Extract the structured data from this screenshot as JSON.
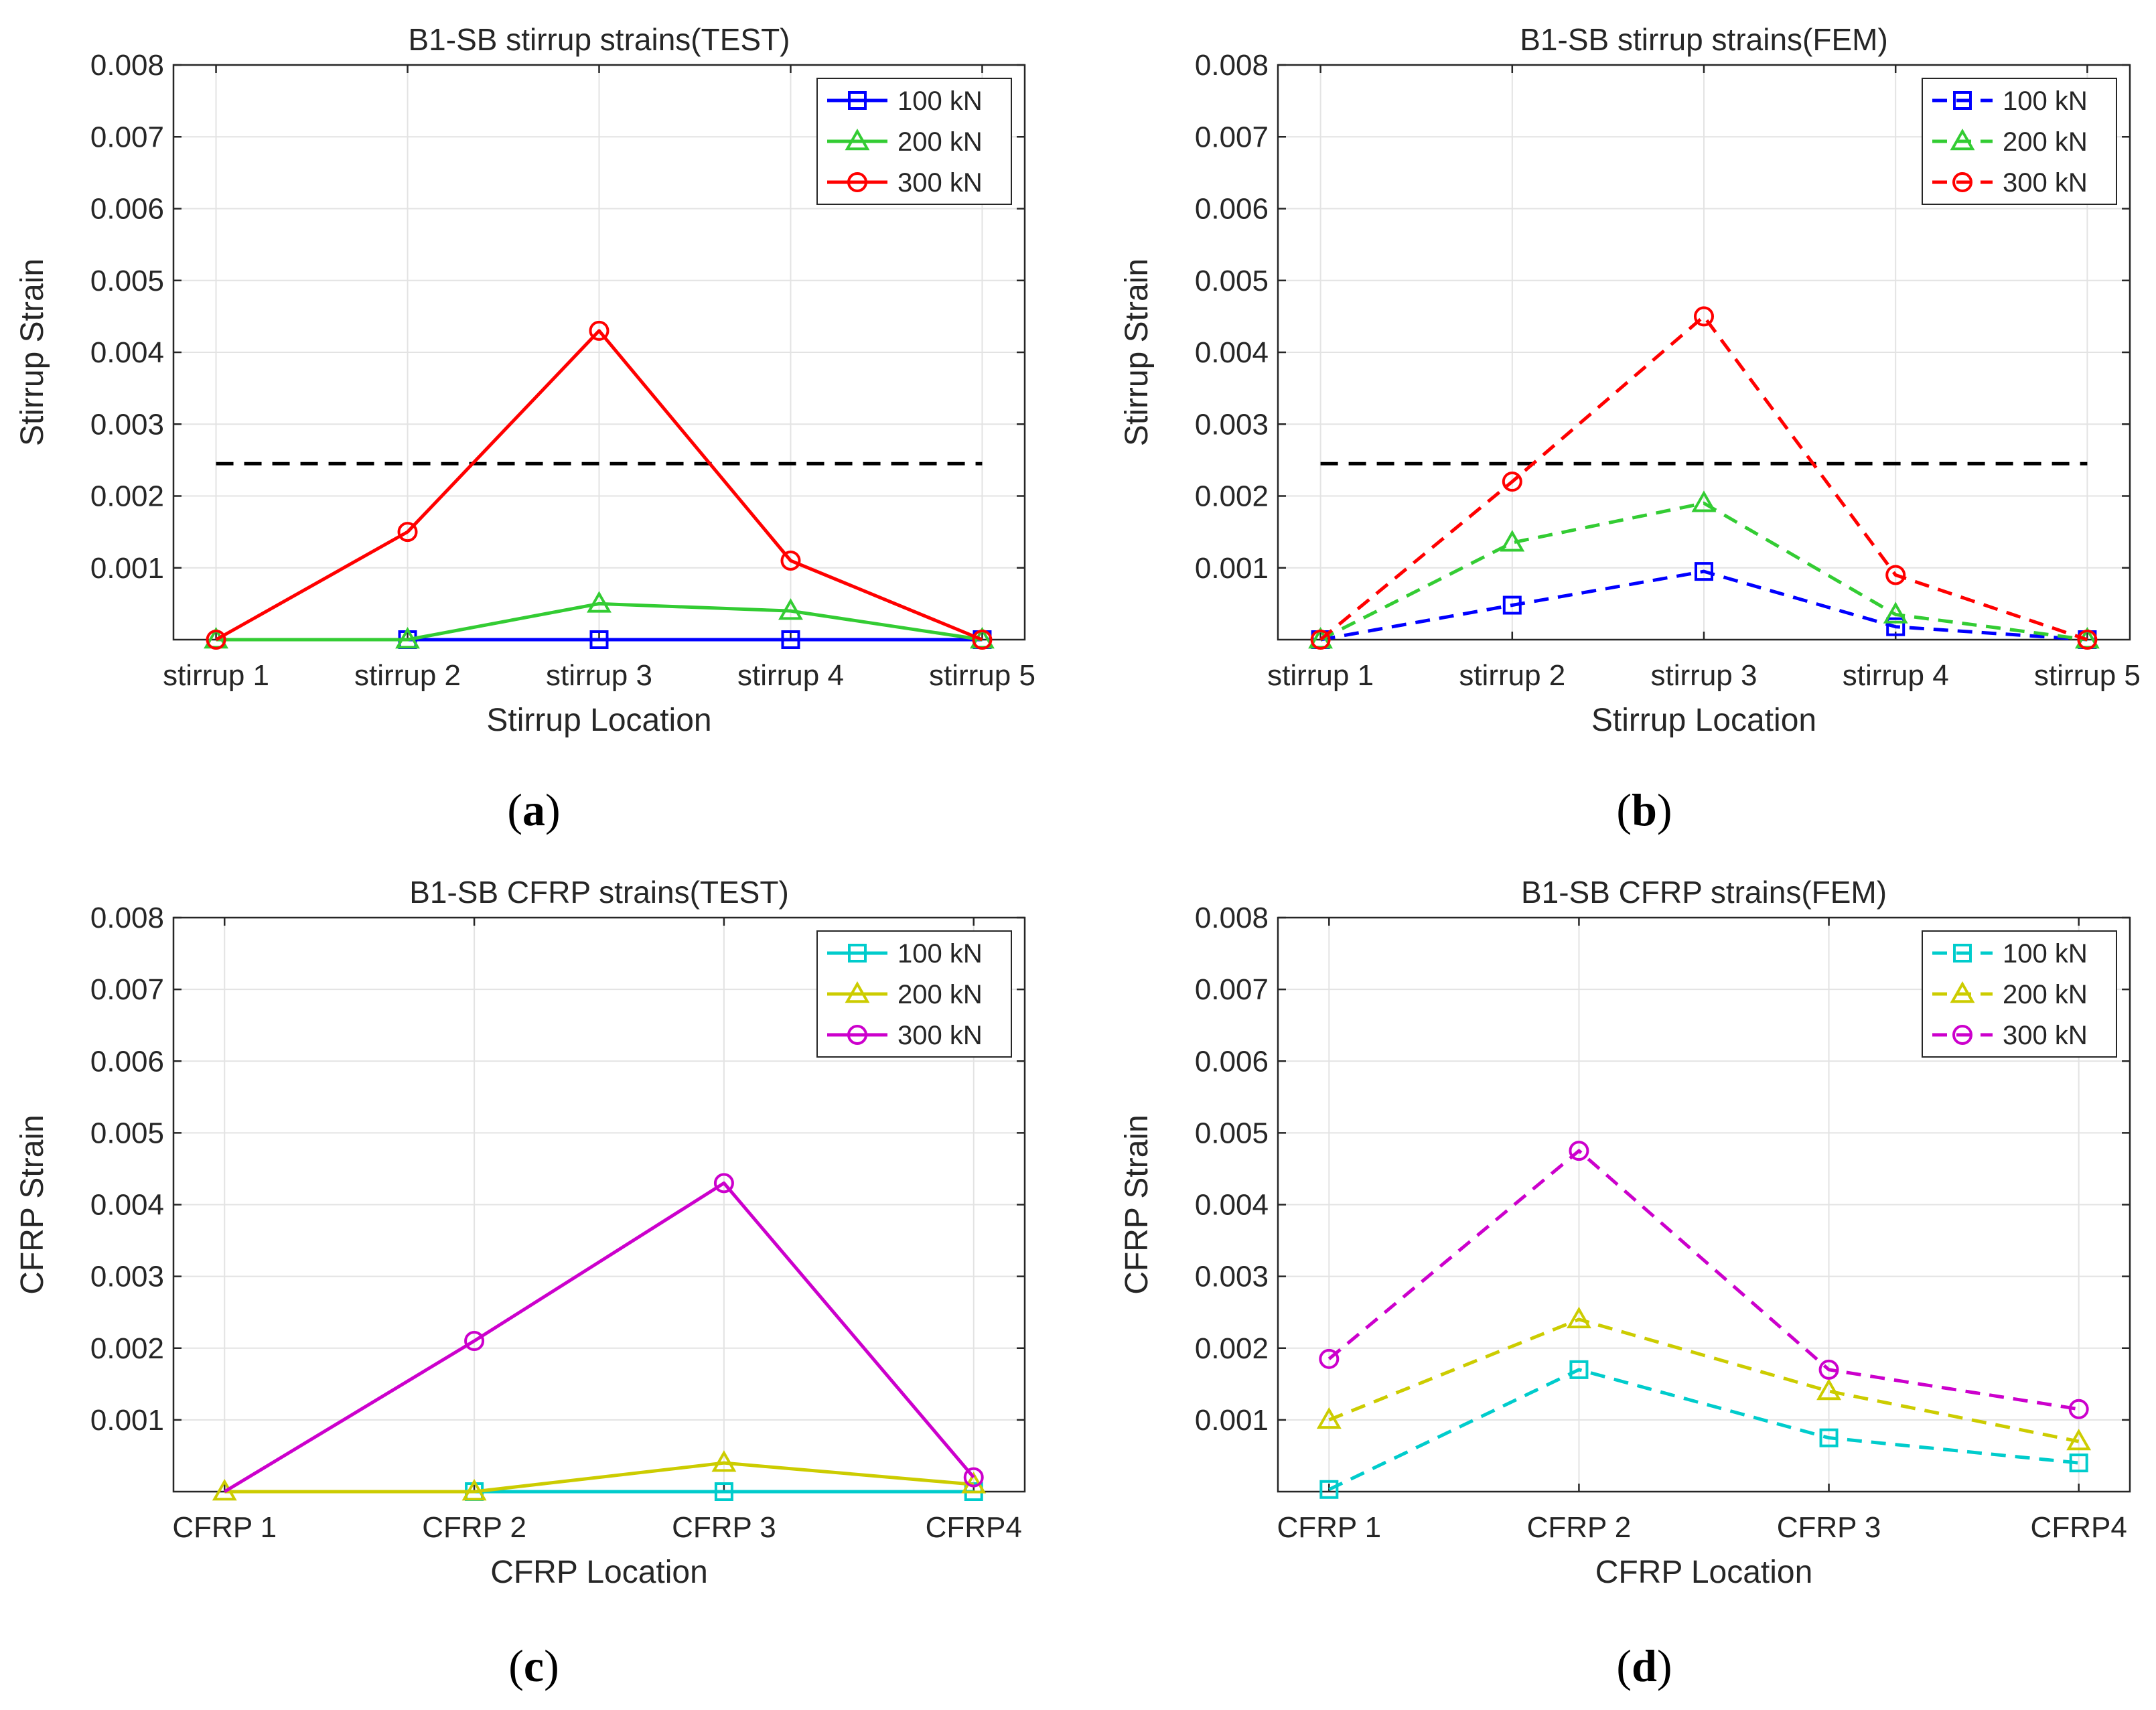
{
  "chart_data": [
    {
      "type": "line",
      "panel": "a",
      "title": "B1-SB stirrup strains(TEST)",
      "xlabel": "Stirrup Location",
      "ylabel": "Stirrup Strain",
      "categories": [
        "stirrup 1",
        "stirrup 2",
        "stirrup 3",
        "stirrup 4",
        "stirrup 5"
      ],
      "yticks": [
        "0.001",
        "0.002",
        "0.003",
        "0.004",
        "0.005",
        "0.006",
        "0.007",
        "0.008"
      ],
      "ylim": [
        0,
        0.008
      ],
      "grid": true,
      "legend_position": "top-right",
      "reference_line": {
        "y": 0.00245,
        "x_from": 0,
        "x_to": 4,
        "color": "#000000",
        "style": "dashed"
      },
      "series": [
        {
          "name": "100 kN",
          "color": "#0000ff",
          "marker": "square",
          "style": "solid",
          "values": [
            0,
            0,
            0,
            0,
            0
          ],
          "x_start": 1
        },
        {
          "name": "200 kN",
          "color": "#33cc33",
          "marker": "triangle",
          "style": "solid",
          "values": [
            0,
            0,
            0.0005,
            0.0004,
            0
          ]
        },
        {
          "name": "300 kN",
          "color": "#ff0000",
          "marker": "circle",
          "style": "solid",
          "values": [
            0,
            0.0015,
            0.0043,
            0.0011,
            0
          ]
        }
      ],
      "sublabel": "(a)"
    },
    {
      "type": "line",
      "panel": "b",
      "title": "B1-SB stirrup strains(FEM)",
      "xlabel": "Stirrup Location",
      "ylabel": "Stirrup Strain",
      "categories": [
        "stirrup 1",
        "stirrup 2",
        "stirrup 3",
        "stirrup 4",
        "stirrup 5"
      ],
      "yticks": [
        "0.001",
        "0.002",
        "0.003",
        "0.004",
        "0.005",
        "0.006",
        "0.007",
        "0.008"
      ],
      "ylim": [
        0,
        0.008
      ],
      "grid": true,
      "legend_position": "top-right",
      "reference_line": {
        "y": 0.00245,
        "x_from": 0,
        "x_to": 4,
        "color": "#000000",
        "style": "dashed"
      },
      "series": [
        {
          "name": "100 kN",
          "color": "#0000ff",
          "marker": "square",
          "style": "dashed",
          "values": [
            0,
            0.00048,
            0.00095,
            0.00018,
            0
          ]
        },
        {
          "name": "200 kN",
          "color": "#33cc33",
          "marker": "triangle",
          "style": "dashed",
          "values": [
            0,
            0.00135,
            0.0019,
            0.00035,
            0
          ]
        },
        {
          "name": "300 kN",
          "color": "#ff0000",
          "marker": "circle",
          "style": "dashed",
          "values": [
            0,
            0.0022,
            0.0045,
            0.0009,
            0
          ]
        }
      ],
      "sublabel": "(b)"
    },
    {
      "type": "line",
      "panel": "c",
      "title": "B1-SB CFRP strains(TEST)",
      "xlabel": "CFRP Location",
      "ylabel": "CFRP Strain",
      "categories": [
        "CFRP 1",
        "CFRP 2",
        "CFRP 3",
        "CFRP4"
      ],
      "yticks": [
        "0.001",
        "0.002",
        "0.003",
        "0.004",
        "0.005",
        "0.006",
        "0.007",
        "0.008"
      ],
      "ylim": [
        0,
        0.008
      ],
      "grid": true,
      "legend_position": "top-right",
      "series": [
        {
          "name": "100 kN",
          "color": "#00cccc",
          "marker": "square",
          "style": "solid",
          "values": [
            0,
            0,
            0,
            0
          ],
          "x_start": 1
        },
        {
          "name": "200 kN",
          "color": "#cccc00",
          "marker": "triangle",
          "style": "solid",
          "values": [
            0,
            0,
            0.0004,
            0.0001
          ]
        },
        {
          "name": "300 kN",
          "color": "#cc00cc",
          "marker": "circle",
          "style": "solid",
          "values": [
            0,
            0.0021,
            0.0043,
            0.0002
          ],
          "marker_start": 1
        }
      ],
      "sublabel": "(c)"
    },
    {
      "type": "line",
      "panel": "d",
      "title": "B1-SB CFRP strains(FEM)",
      "xlabel": "CFRP Location",
      "ylabel": "CFRP Strain",
      "categories": [
        "CFRP 1",
        "CFRP 2",
        "CFRP 3",
        "CFRP4"
      ],
      "yticks": [
        "0.001",
        "0.002",
        "0.003",
        "0.004",
        "0.005",
        "0.006",
        "0.007",
        "0.008"
      ],
      "ylim": [
        0,
        0.008
      ],
      "grid": true,
      "legend_position": "top-right",
      "series": [
        {
          "name": "100 kN",
          "color": "#00cccc",
          "marker": "square",
          "style": "dashed",
          "values": [
            3e-05,
            0.0017,
            0.00075,
            0.0004
          ]
        },
        {
          "name": "200 kN",
          "color": "#cccc00",
          "marker": "triangle",
          "style": "dashed",
          "values": [
            0.001,
            0.0024,
            0.0014,
            0.0007
          ]
        },
        {
          "name": "300 kN",
          "color": "#cc00cc",
          "marker": "circle",
          "style": "dashed",
          "values": [
            0.00185,
            0.00475,
            0.0017,
            0.00115
          ]
        }
      ],
      "sublabel": "(d)"
    }
  ]
}
